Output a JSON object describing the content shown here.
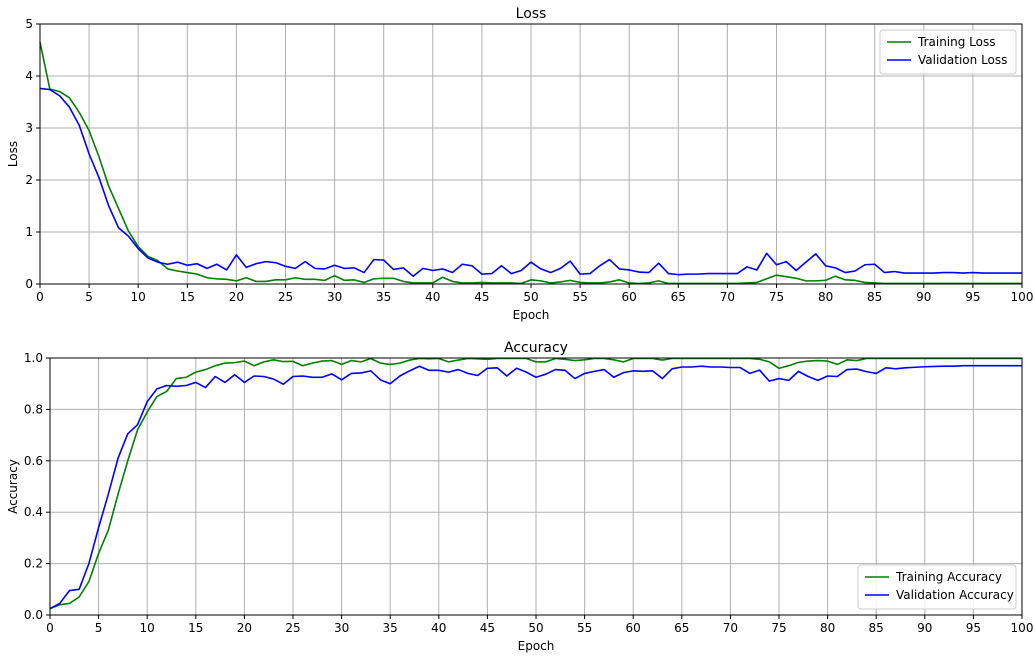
{
  "chart_data": [
    {
      "type": "line",
      "title": "Loss",
      "xlabel": "Epoch",
      "ylabel": "Loss",
      "xlim": [
        0,
        100
      ],
      "ylim": [
        0,
        5
      ],
      "xticks": [
        0,
        5,
        10,
        15,
        20,
        25,
        30,
        35,
        40,
        45,
        50,
        55,
        60,
        65,
        70,
        75,
        80,
        85,
        90,
        95,
        100
      ],
      "yticks": [
        0,
        1,
        2,
        3,
        4,
        5
      ],
      "grid": true,
      "legend_position": "top-right",
      "series": [
        {
          "name": "Training Loss",
          "color": "#008000",
          "x": [
            0,
            1,
            2,
            3,
            4,
            5,
            6,
            7,
            8,
            9,
            10,
            11,
            12,
            13,
            14,
            15,
            16,
            17,
            18,
            19,
            20,
            21,
            22,
            23,
            24,
            25,
            26,
            27,
            28,
            29,
            30,
            31,
            32,
            33,
            34,
            35,
            36,
            37,
            38,
            39,
            40,
            41,
            42,
            43,
            44,
            45,
            46,
            47,
            48,
            49,
            50,
            51,
            52,
            53,
            54,
            55,
            56,
            57,
            58,
            59,
            60,
            61,
            62,
            63,
            64,
            65,
            66,
            67,
            68,
            69,
            70,
            71,
            72,
            73,
            74,
            75,
            76,
            77,
            78,
            79,
            80,
            81,
            82,
            83,
            84,
            85,
            86,
            87,
            88,
            89,
            90,
            91,
            92,
            93,
            94,
            95,
            96,
            97,
            98,
            99,
            100
          ],
          "values": [
            4.65,
            3.75,
            3.7,
            3.58,
            3.3,
            2.95,
            2.45,
            1.88,
            1.45,
            1.02,
            0.72,
            0.53,
            0.45,
            0.29,
            0.25,
            0.22,
            0.19,
            0.12,
            0.1,
            0.09,
            0.06,
            0.12,
            0.05,
            0.05,
            0.08,
            0.08,
            0.12,
            0.09,
            0.09,
            0.07,
            0.16,
            0.07,
            0.08,
            0.03,
            0.1,
            0.11,
            0.11,
            0.05,
            0.02,
            0.02,
            0.02,
            0.13,
            0.05,
            0.02,
            0.02,
            0.03,
            0.02,
            0.02,
            0.02,
            0.01,
            0.08,
            0.06,
            0.02,
            0.04,
            0.07,
            0.03,
            0.02,
            0.02,
            0.04,
            0.08,
            0.02,
            0.01,
            0.02,
            0.06,
            0.01,
            0.01,
            0.01,
            0.01,
            0.01,
            0.01,
            0.01,
            0.01,
            0.02,
            0.03,
            0.1,
            0.17,
            0.14,
            0.11,
            0.06,
            0.06,
            0.07,
            0.15,
            0.08,
            0.07,
            0.03,
            0.02,
            0.01,
            0.01,
            0.01,
            0.01,
            0.01,
            0.01,
            0.01,
            0.01,
            0.01,
            0.01,
            0.01,
            0.01,
            0.01,
            0.01,
            0.01
          ]
        },
        {
          "name": "Validation Loss",
          "color": "#0000ff",
          "x": [
            0,
            1,
            2,
            3,
            4,
            5,
            6,
            7,
            8,
            9,
            10,
            11,
            12,
            13,
            14,
            15,
            16,
            17,
            18,
            19,
            20,
            21,
            22,
            23,
            24,
            25,
            26,
            27,
            28,
            29,
            30,
            31,
            32,
            33,
            34,
            35,
            36,
            37,
            38,
            39,
            40,
            41,
            42,
            43,
            44,
            45,
            46,
            47,
            48,
            49,
            50,
            51,
            52,
            53,
            54,
            55,
            56,
            57,
            58,
            59,
            60,
            61,
            62,
            63,
            64,
            65,
            66,
            67,
            68,
            69,
            70,
            71,
            72,
            73,
            74,
            75,
            76,
            77,
            78,
            79,
            80,
            81,
            82,
            83,
            84,
            85,
            86,
            87,
            88,
            89,
            90,
            91,
            92,
            93,
            94,
            95,
            96,
            97,
            98,
            99,
            100
          ],
          "values": [
            3.76,
            3.74,
            3.62,
            3.4,
            3.05,
            2.5,
            2.05,
            1.5,
            1.08,
            0.92,
            0.68,
            0.5,
            0.42,
            0.38,
            0.42,
            0.36,
            0.39,
            0.3,
            0.38,
            0.27,
            0.56,
            0.32,
            0.39,
            0.43,
            0.41,
            0.34,
            0.3,
            0.43,
            0.3,
            0.29,
            0.36,
            0.3,
            0.31,
            0.22,
            0.47,
            0.46,
            0.28,
            0.31,
            0.15,
            0.3,
            0.26,
            0.29,
            0.22,
            0.38,
            0.35,
            0.19,
            0.2,
            0.35,
            0.2,
            0.26,
            0.42,
            0.29,
            0.22,
            0.3,
            0.44,
            0.19,
            0.2,
            0.35,
            0.47,
            0.29,
            0.27,
            0.23,
            0.22,
            0.4,
            0.2,
            0.18,
            0.19,
            0.19,
            0.2,
            0.2,
            0.2,
            0.2,
            0.33,
            0.27,
            0.59,
            0.37,
            0.43,
            0.26,
            0.42,
            0.58,
            0.35,
            0.31,
            0.22,
            0.25,
            0.37,
            0.38,
            0.22,
            0.24,
            0.21,
            0.21,
            0.21,
            0.21,
            0.22,
            0.22,
            0.21,
            0.22,
            0.21,
            0.21,
            0.21,
            0.21,
            0.21
          ]
        }
      ]
    },
    {
      "type": "line",
      "title": "Accuracy",
      "xlabel": "Epoch",
      "ylabel": "Accuracy",
      "xlim": [
        0,
        100
      ],
      "ylim": [
        0,
        1
      ],
      "xticks": [
        0,
        5,
        10,
        15,
        20,
        25,
        30,
        35,
        40,
        45,
        50,
        55,
        60,
        65,
        70,
        75,
        80,
        85,
        90,
        95,
        100
      ],
      "yticks": [
        0.0,
        0.2,
        0.4,
        0.6,
        0.8,
        1.0
      ],
      "grid": true,
      "legend_position": "bottom-right",
      "series": [
        {
          "name": "Training Accuracy",
          "color": "#008000",
          "x": [
            0,
            1,
            2,
            3,
            4,
            5,
            6,
            7,
            8,
            9,
            10,
            11,
            12,
            13,
            14,
            15,
            16,
            17,
            18,
            19,
            20,
            21,
            22,
            23,
            24,
            25,
            26,
            27,
            28,
            29,
            30,
            31,
            32,
            33,
            34,
            35,
            36,
            37,
            38,
            39,
            40,
            41,
            42,
            43,
            44,
            45,
            46,
            47,
            48,
            49,
            50,
            51,
            52,
            53,
            54,
            55,
            56,
            57,
            58,
            59,
            60,
            61,
            62,
            63,
            64,
            65,
            66,
            67,
            68,
            69,
            70,
            71,
            72,
            73,
            74,
            75,
            76,
            77,
            78,
            79,
            80,
            81,
            82,
            83,
            84,
            85,
            86,
            87,
            88,
            89,
            90,
            91,
            92,
            93,
            94,
            95,
            96,
            97,
            98,
            99,
            100
          ],
          "values": [
            0.025,
            0.04,
            0.045,
            0.07,
            0.13,
            0.24,
            0.33,
            0.47,
            0.6,
            0.72,
            0.79,
            0.85,
            0.87,
            0.92,
            0.925,
            0.945,
            0.955,
            0.97,
            0.98,
            0.982,
            0.988,
            0.97,
            0.985,
            0.993,
            0.986,
            0.987,
            0.97,
            0.98,
            0.988,
            0.99,
            0.975,
            0.99,
            0.985,
            0.998,
            0.98,
            0.975,
            0.98,
            0.992,
            0.998,
            0.997,
            0.998,
            0.985,
            0.992,
            0.998,
            0.997,
            0.995,
            0.998,
            0.998,
            0.998,
            0.998,
            0.985,
            0.985,
            0.998,
            0.995,
            0.99,
            0.993,
            0.998,
            0.998,
            0.993,
            0.985,
            0.998,
            0.998,
            0.998,
            0.992,
            0.998,
            0.998,
            0.998,
            0.998,
            0.998,
            0.998,
            0.998,
            0.998,
            0.998,
            0.995,
            0.985,
            0.96,
            0.97,
            0.983,
            0.988,
            0.99,
            0.988,
            0.975,
            0.993,
            0.99,
            0.998,
            0.998,
            0.998,
            0.998,
            0.998,
            0.998,
            0.998,
            0.998,
            0.998,
            0.998,
            0.998,
            0.998,
            0.998,
            0.998,
            0.998,
            0.998,
            0.998
          ]
        },
        {
          "name": "Validation Accuracy",
          "color": "#0000ff",
          "x": [
            0,
            1,
            2,
            3,
            4,
            5,
            6,
            7,
            8,
            9,
            10,
            11,
            12,
            13,
            14,
            15,
            16,
            17,
            18,
            19,
            20,
            21,
            22,
            23,
            24,
            25,
            26,
            27,
            28,
            29,
            30,
            31,
            32,
            33,
            34,
            35,
            36,
            37,
            38,
            39,
            40,
            41,
            42,
            43,
            44,
            45,
            46,
            47,
            48,
            49,
            50,
            51,
            52,
            53,
            54,
            55,
            56,
            57,
            58,
            59,
            60,
            61,
            62,
            63,
            64,
            65,
            66,
            67,
            68,
            69,
            70,
            71,
            72,
            73,
            74,
            75,
            76,
            77,
            78,
            79,
            80,
            81,
            82,
            83,
            84,
            85,
            86,
            87,
            88,
            89,
            90,
            91,
            92,
            93,
            94,
            95,
            96,
            97,
            98,
            99,
            100
          ],
          "values": [
            0.025,
            0.045,
            0.095,
            0.1,
            0.2,
            0.34,
            0.47,
            0.61,
            0.705,
            0.74,
            0.83,
            0.88,
            0.893,
            0.89,
            0.893,
            0.905,
            0.885,
            0.928,
            0.905,
            0.935,
            0.905,
            0.93,
            0.928,
            0.918,
            0.898,
            0.928,
            0.93,
            0.925,
            0.925,
            0.938,
            0.915,
            0.94,
            0.942,
            0.95,
            0.915,
            0.9,
            0.93,
            0.95,
            0.968,
            0.952,
            0.952,
            0.945,
            0.955,
            0.94,
            0.932,
            0.96,
            0.962,
            0.93,
            0.96,
            0.945,
            0.925,
            0.937,
            0.955,
            0.952,
            0.92,
            0.94,
            0.948,
            0.955,
            0.925,
            0.943,
            0.95,
            0.948,
            0.95,
            0.92,
            0.958,
            0.965,
            0.965,
            0.968,
            0.965,
            0.965,
            0.963,
            0.963,
            0.94,
            0.953,
            0.91,
            0.92,
            0.913,
            0.948,
            0.928,
            0.913,
            0.93,
            0.928,
            0.955,
            0.957,
            0.947,
            0.94,
            0.962,
            0.958,
            0.962,
            0.964,
            0.966,
            0.967,
            0.968,
            0.968,
            0.97,
            0.97,
            0.97,
            0.97,
            0.97,
            0.97,
            0.97
          ]
        }
      ]
    }
  ]
}
